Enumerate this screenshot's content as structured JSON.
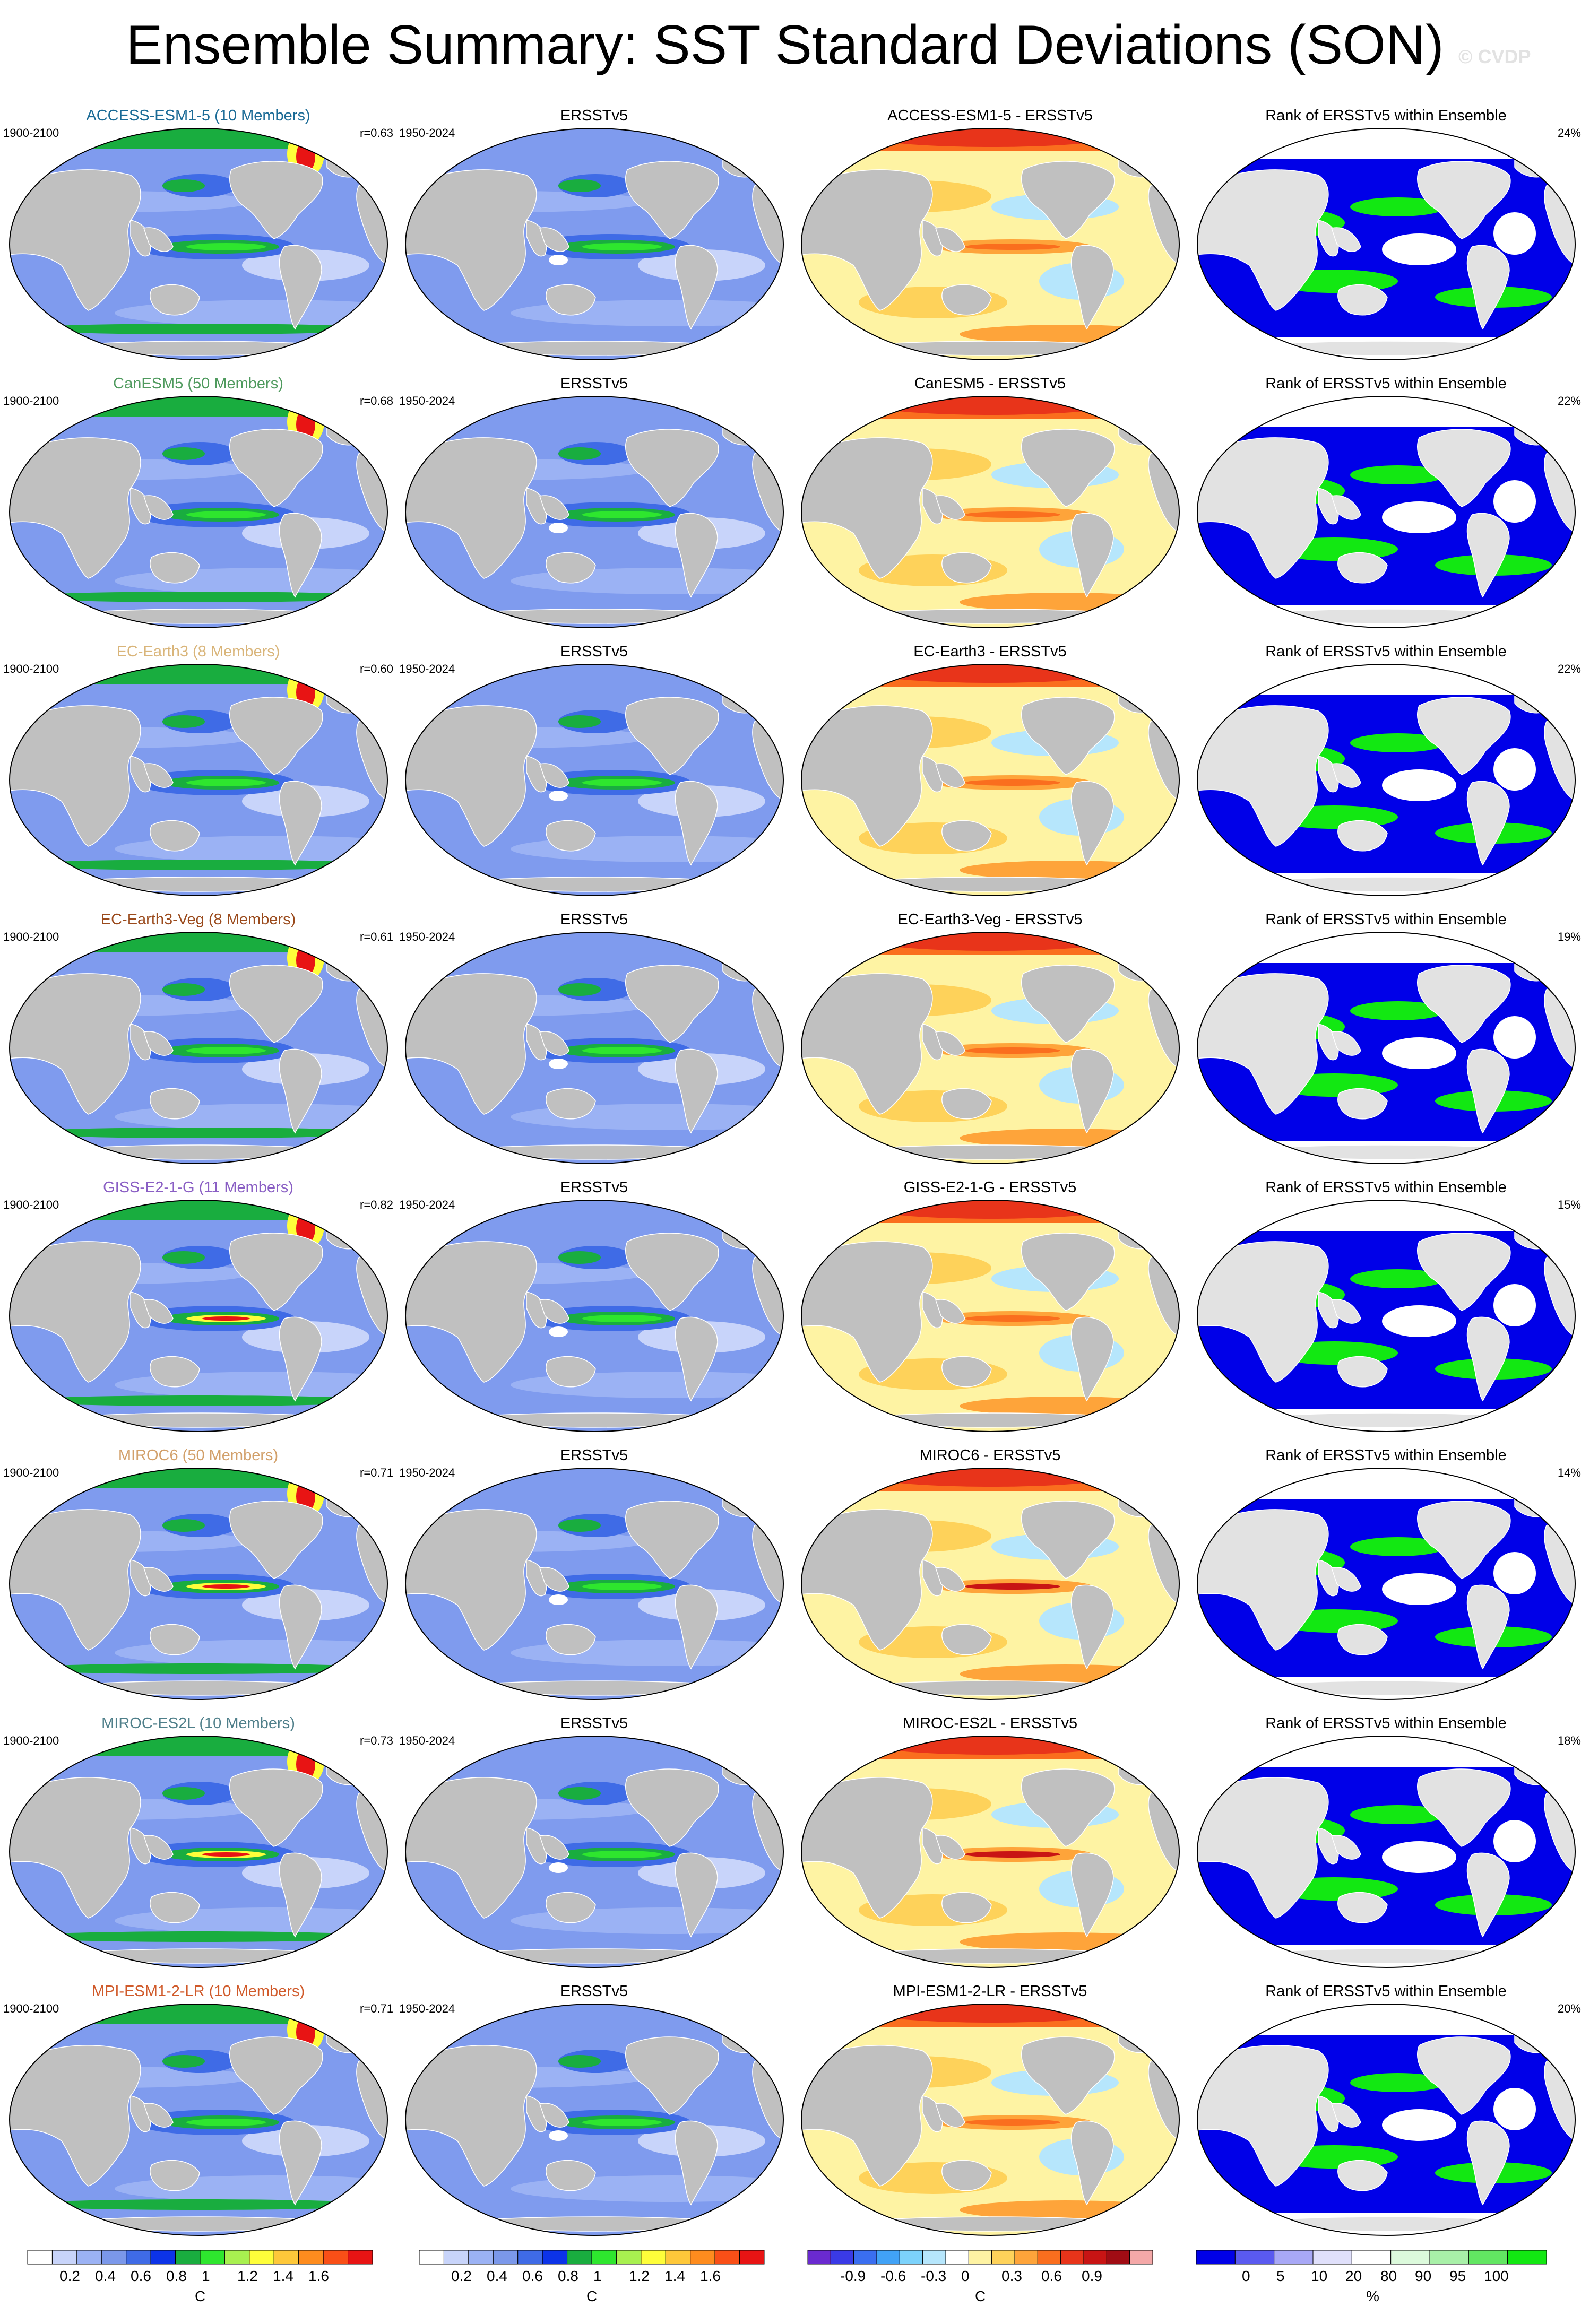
{
  "title": "Ensemble Summary: SST Standard Deviations (SON)",
  "watermark": "© CVDP",
  "colors": {
    "ocean_base": "#7f9bee",
    "land": "#c0c0c0",
    "diff_base": "#fef3a3",
    "rank_base": "#0000e8"
  },
  "rows": [
    {
      "model": "ACCESS-ESM1-5 (10 Members)",
      "model_color": "#1b6b96",
      "model_period": "1900-2100",
      "r": "r=0.63",
      "obs": "ERSSTv5",
      "obs_period": "1950-2024",
      "diff": "ACCESS-ESM1-5 - ERSSTv5",
      "rank": "Rank of ERSSTv5 within Ensemble",
      "rank_pct": "24%"
    },
    {
      "model": "CanESM5 (50 Members)",
      "model_color": "#4f9a5e",
      "model_period": "1900-2100",
      "r": "r=0.68",
      "obs": "ERSSTv5",
      "obs_period": "1950-2024",
      "diff": "CanESM5 - ERSSTv5",
      "rank": "Rank of ERSSTv5 within Ensemble",
      "rank_pct": "22%"
    },
    {
      "model": "EC-Earth3 (8 Members)",
      "model_color": "#d9b57a",
      "model_period": "1900-2100",
      "r": "r=0.60",
      "obs": "ERSSTv5",
      "obs_period": "1950-2024",
      "diff": "EC-Earth3 - ERSSTv5",
      "rank": "Rank of ERSSTv5 within Ensemble",
      "rank_pct": "22%"
    },
    {
      "model": "EC-Earth3-Veg (8 Members)",
      "model_color": "#9a4a1c",
      "model_period": "1900-2100",
      "r": "r=0.61",
      "obs": "ERSSTv5",
      "obs_period": "1950-2024",
      "diff": "EC-Earth3-Veg - ERSSTv5",
      "rank": "Rank of ERSSTv5 within Ensemble",
      "rank_pct": "19%"
    },
    {
      "model": "GISS-E2-1-G (11 Members)",
      "model_color": "#8a5fc4",
      "model_period": "1900-2100",
      "r": "r=0.82",
      "obs": "ERSSTv5",
      "obs_period": "1950-2024",
      "diff": "GISS-E2-1-G - ERSSTv5",
      "rank": "Rank of ERSSTv5 within Ensemble",
      "rank_pct": "15%"
    },
    {
      "model": "MIROC6 (50 Members)",
      "model_color": "#d2a06a",
      "model_period": "1900-2100",
      "r": "r=0.71",
      "obs": "ERSSTv5",
      "obs_period": "1950-2024",
      "diff": "MIROC6 - ERSSTv5",
      "rank": "Rank of ERSSTv5 within Ensemble",
      "rank_pct": "14%"
    },
    {
      "model": "MIROC-ES2L (10 Members)",
      "model_color": "#4f7f8a",
      "model_period": "1900-2100",
      "r": "r=0.73",
      "obs": "ERSSTv5",
      "obs_period": "1950-2024",
      "diff": "MIROC-ES2L - ERSSTv5",
      "rank": "Rank of ERSSTv5 within Ensemble",
      "rank_pct": "18%"
    },
    {
      "model": "MPI-ESM1-2-LR (10 Members)",
      "model_color": "#d05a2a",
      "model_period": "1900-2100",
      "r": "r=0.71",
      "obs": "ERSSTv5",
      "obs_period": "1950-2024",
      "diff": "MPI-ESM1-2-LR - ERSSTv5",
      "rank": "Rank of ERSSTv5 within Ensemble",
      "rank_pct": "20%"
    }
  ],
  "colorbars": [
    {
      "unit": "C",
      "ticks": [
        "0.2",
        "0.4",
        "0.6",
        "0.8",
        "1",
        "1.2",
        "1.4",
        "1.6"
      ],
      "colors": [
        "#ffffff",
        "#c8d4fa",
        "#9bb2f4",
        "#7b98ea",
        "#3f6be6",
        "#0c33e8",
        "#19ad3f",
        "#2ee62e",
        "#a8f050",
        "#fefe3a",
        "#fec83a",
        "#fe8c1e",
        "#f94f17",
        "#e81414"
      ]
    },
    {
      "unit": "C",
      "ticks": [
        "0.2",
        "0.4",
        "0.6",
        "0.8",
        "1",
        "1.2",
        "1.4",
        "1.6"
      ],
      "colors": [
        "#ffffff",
        "#c8d4fa",
        "#9bb2f4",
        "#7b98ea",
        "#3f6be6",
        "#0c33e8",
        "#19ad3f",
        "#2ee62e",
        "#a8f050",
        "#fefe3a",
        "#fec83a",
        "#fe8c1e",
        "#f94f17",
        "#e81414"
      ]
    },
    {
      "unit": "C",
      "ticks": [
        "-0.9",
        "-0.6",
        "-0.3",
        "0",
        "0.3",
        "0.6",
        "0.9"
      ],
      "colors": [
        "#6a2ad0",
        "#3a3ae6",
        "#3a6ef0",
        "#41a2f6",
        "#7cd2fb",
        "#b6e6fc",
        "#ffffff",
        "#fef3a3",
        "#fed25a",
        "#fea43a",
        "#fa6e1e",
        "#e8341a",
        "#c81414",
        "#a00c14",
        "#f4a8a8"
      ]
    },
    {
      "unit": "%",
      "ticks": [
        "0",
        "5",
        "10",
        "20",
        "80",
        "90",
        "95",
        "100"
      ],
      "colors": [
        "#0000e8",
        "#5a5af0",
        "#a8a8f6",
        "#e0e0fb",
        "#ffffff",
        "#dcfadc",
        "#a8f0a8",
        "#62e662",
        "#12e812"
      ]
    }
  ]
}
